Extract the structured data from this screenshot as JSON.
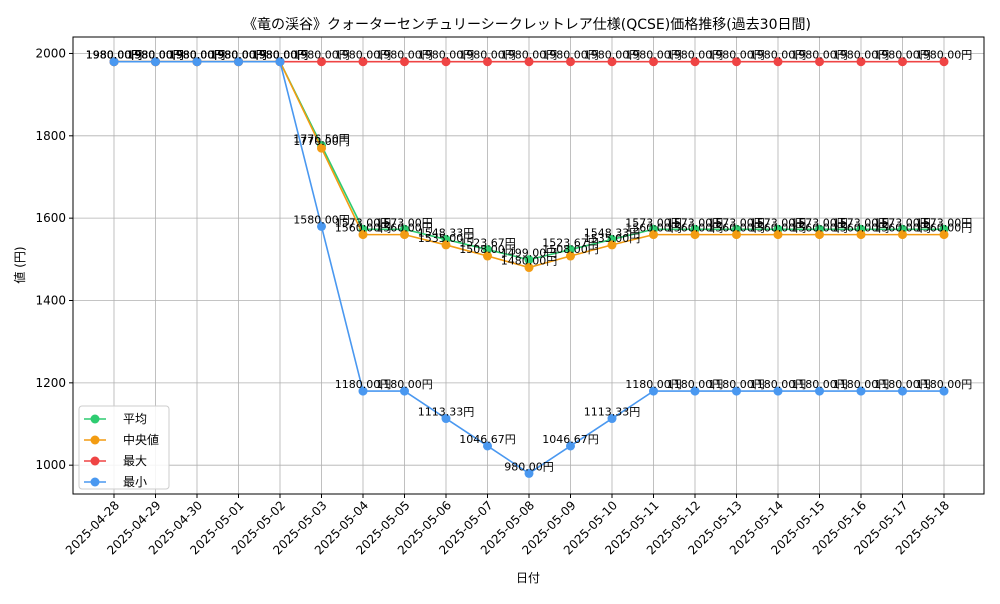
{
  "chart_data": {
    "type": "line",
    "title": "《竜の渓谷》クォーターセンチュリーシークレットレア仕様(QCSE)価格推移(過去30日間)",
    "xlabel": "日付",
    "ylabel": "値 (円)",
    "ylim": [
      930,
      2040
    ],
    "yticks": [
      1000,
      1200,
      1400,
      1600,
      1800,
      2000
    ],
    "ytick_labels": [
      "1000",
      "1200",
      "1400",
      "1600",
      "1800",
      "2000"
    ],
    "grid": true,
    "legend_position": "lower-left",
    "categories": [
      "2025-04-28",
      "2025-04-29",
      "2025-04-30",
      "2025-05-01",
      "2025-05-02",
      "2025-05-03",
      "2025-05-04",
      "2025-05-05",
      "2025-05-06",
      "2025-05-07",
      "2025-05-08",
      "2025-05-09",
      "2025-05-10",
      "2025-05-11",
      "2025-05-12",
      "2025-05-13",
      "2025-05-14",
      "2025-05-15",
      "2025-05-16",
      "2025-05-17",
      "2025-05-18"
    ],
    "series": [
      {
        "key": "avg",
        "name": "平均",
        "color": "#2ecc71",
        "values": [
          1980,
          1980,
          1980,
          1980,
          1980,
          1776.5,
          1573,
          1573,
          1548.33,
          1523.67,
          1499,
          1523.67,
          1548.33,
          1573,
          1573,
          1573,
          1573,
          1573,
          1573,
          1573,
          1573
        ],
        "labels": [
          "1980.00円",
          "1980.00円",
          "1980.00円",
          "1980.00円",
          "1980.00円",
          "1776.50円",
          "1573.00円",
          "1573.00円",
          "1548.33円",
          "1523.67円",
          "1499.00円",
          "1523.67円",
          "1548.33円",
          "1573.00円",
          "1573.00円",
          "1573.00円",
          "1573.00円",
          "1573.00円",
          "1573.00円",
          "1573.00円",
          "1573.00円"
        ]
      },
      {
        "key": "median",
        "name": "中央値",
        "color": "#f39c12",
        "values": [
          1980,
          1980,
          1980,
          1980,
          1980,
          1770,
          1560,
          1560,
          1535,
          1508,
          1480,
          1508,
          1535,
          1560,
          1560,
          1560,
          1560,
          1560,
          1560,
          1560,
          1560
        ],
        "labels": [
          "1980.00円",
          "1980.00円",
          "1980.00円",
          "1980.00円",
          "1980.00円",
          "1770.00円",
          "1560.00円",
          "1560.00円",
          "1535.00円",
          "1508.00円",
          "1480.00円",
          "1508.00円",
          "1535.00円",
          "1560.00円",
          "1560.00円",
          "1560.00円",
          "1560.00円",
          "1560.00円",
          "1560.00円",
          "1560.00円",
          "1560.00円"
        ]
      },
      {
        "key": "max",
        "name": "最大",
        "color": "#ef4444",
        "values": [
          1980,
          1980,
          1980,
          1980,
          1980,
          1980,
          1980,
          1980,
          1980,
          1980,
          1980,
          1980,
          1980,
          1980,
          1980,
          1980,
          1980,
          1980,
          1980,
          1980,
          1980
        ],
        "labels": [
          "1980.00円",
          "1980.00円",
          "1980.00円",
          "1980.00円",
          "1980.00円",
          "1980.00円",
          "1980.00円",
          "1980.00円",
          "1980.00円",
          "1980.00円",
          "1980.00円",
          "1980.00円",
          "1980.00円",
          "1980.00円",
          "1980.00円",
          "1980.00円",
          "1980.00円",
          "1980.00円",
          "1980.00円",
          "1980.00円",
          "1980.00円"
        ]
      },
      {
        "key": "min",
        "name": "最小",
        "color": "#4a98f0",
        "values": [
          1980,
          1980,
          1980,
          1980,
          1980,
          1580,
          1180,
          1180,
          1113.33,
          1046.67,
          980,
          1046.67,
          1113.33,
          1180,
          1180,
          1180,
          1180,
          1180,
          1180,
          1180,
          1180
        ],
        "labels": [
          "1980.00円",
          "1980.00円",
          "1980.00円",
          "1980.00円",
          "1980.00円",
          "1580.00円",
          "1180.00円",
          "1180.00円",
          "1113.33円",
          "1046.67円",
          "980.00円",
          "1046.67円",
          "1113.33円",
          "1180.00円",
          "1180.00円",
          "1180.00円",
          "1180.00円",
          "1180.00円",
          "1180.00円",
          "1180.00円",
          "1180.00円"
        ]
      }
    ],
    "draw_order": [
      "avg",
      "median",
      "max",
      "min"
    ],
    "legend_order": [
      "avg",
      "median",
      "max",
      "min"
    ]
  }
}
